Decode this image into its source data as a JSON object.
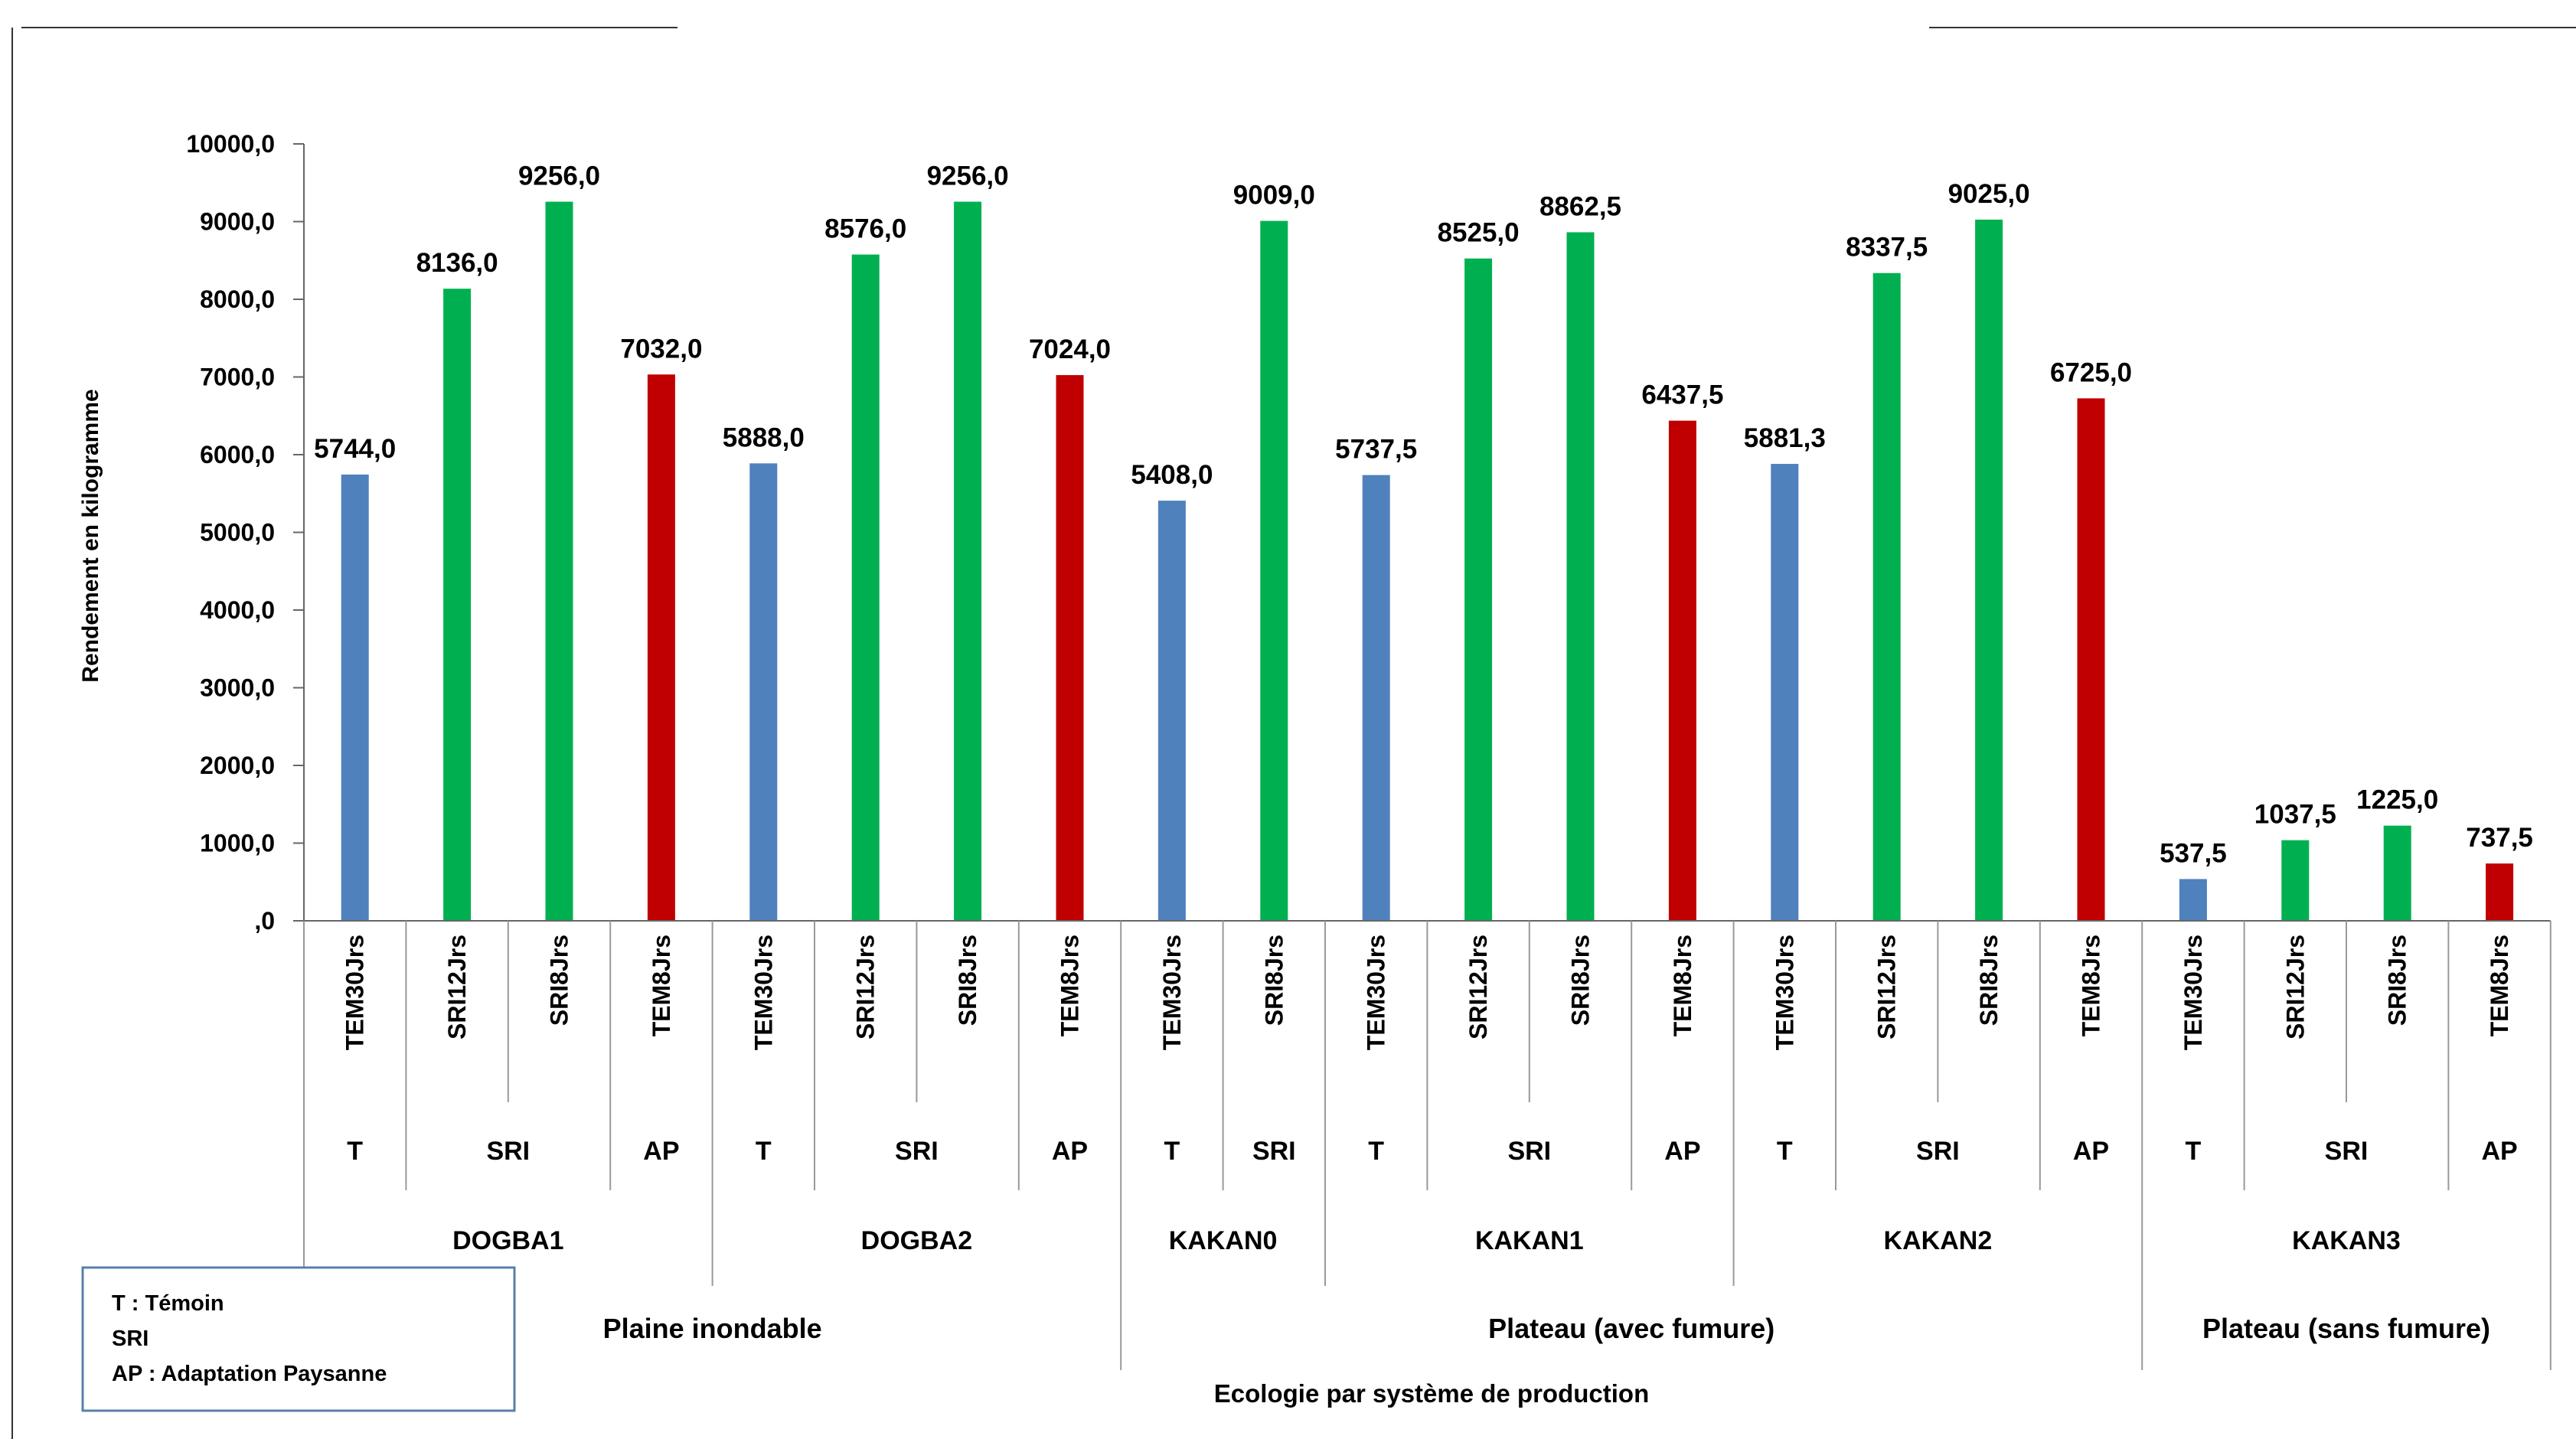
{
  "chart_data": {
    "type": "bar",
    "ylabel": "Rendement en kilogramme",
    "xlabel": "Ecologie par système de production",
    "ylim": [
      0,
      10000
    ],
    "yticks": [
      {
        "value": 0,
        "label": ",0"
      },
      {
        "value": 1000,
        "label": "1000,0"
      },
      {
        "value": 2000,
        "label": "2000,0"
      },
      {
        "value": 3000,
        "label": "3000,0"
      },
      {
        "value": 4000,
        "label": "4000,0"
      },
      {
        "value": 5000,
        "label": "5000,0"
      },
      {
        "value": 6000,
        "label": "6000,0"
      },
      {
        "value": 7000,
        "label": "7000,0"
      },
      {
        "value": 8000,
        "label": "8000,0"
      },
      {
        "value": 9000,
        "label": "9000,0"
      },
      {
        "value": 10000,
        "label": "10000,0"
      }
    ],
    "grid": false,
    "colors": {
      "T": "#4f81bd",
      "SRI": "#00b050",
      "AP": "#c00000"
    },
    "bars": [
      {
        "category": "TEM30Jrs",
        "group": "T",
        "site": "DOGBA1",
        "value": 5744.0,
        "label": "5744,0"
      },
      {
        "category": "SRI12Jrs",
        "group": "SRI",
        "site": "DOGBA1",
        "value": 8136.0,
        "label": "8136,0"
      },
      {
        "category": "SRI8Jrs",
        "group": "SRI",
        "site": "DOGBA1",
        "value": 9256.0,
        "label": "9256,0"
      },
      {
        "category": "TEM8Jrs",
        "group": "AP",
        "site": "DOGBA1",
        "value": 7032.0,
        "label": "7032,0"
      },
      {
        "category": "TEM30Jrs",
        "group": "T",
        "site": "DOGBA2",
        "value": 5888.0,
        "label": "5888,0"
      },
      {
        "category": "SRI12Jrs",
        "group": "SRI",
        "site": "DOGBA2",
        "value": 8576.0,
        "label": "8576,0"
      },
      {
        "category": "SRI8Jrs",
        "group": "SRI",
        "site": "DOGBA2",
        "value": 9256.0,
        "label": "9256,0"
      },
      {
        "category": "TEM8Jrs",
        "group": "AP",
        "site": "DOGBA2",
        "value": 7024.0,
        "label": "7024,0"
      },
      {
        "category": "TEM30Jrs",
        "group": "T",
        "site": "KAKAN0",
        "value": 5408.0,
        "label": "5408,0"
      },
      {
        "category": "SRI8Jrs",
        "group": "SRI",
        "site": "KAKAN0",
        "value": 9009.0,
        "label": "9009,0"
      },
      {
        "category": "TEM30Jrs",
        "group": "T",
        "site": "KAKAN1",
        "value": 5737.5,
        "label": "5737,5"
      },
      {
        "category": "SRI12Jrs",
        "group": "SRI",
        "site": "KAKAN1",
        "value": 8525.0,
        "label": "8525,0"
      },
      {
        "category": "SRI8Jrs",
        "group": "SRI",
        "site": "KAKAN1",
        "value": 8862.5,
        "label": "8862,5"
      },
      {
        "category": "TEM8Jrs",
        "group": "AP",
        "site": "KAKAN1",
        "value": 6437.5,
        "label": "6437,5"
      },
      {
        "category": "TEM30Jrs",
        "group": "T",
        "site": "KAKAN2",
        "value": 5881.3,
        "label": "5881,3"
      },
      {
        "category": "SRI12Jrs",
        "group": "SRI",
        "site": "KAKAN2",
        "value": 8337.5,
        "label": "8337,5"
      },
      {
        "category": "SRI8Jrs",
        "group": "SRI",
        "site": "KAKAN2",
        "value": 9025.0,
        "label": "9025,0"
      },
      {
        "category": "TEM8Jrs",
        "group": "AP",
        "site": "KAKAN2",
        "value": 6725.0,
        "label": "6725,0"
      },
      {
        "category": "TEM30Jrs",
        "group": "T",
        "site": "KAKAN3",
        "value": 537.5,
        "label": "537,5"
      },
      {
        "category": "SRI12Jrs",
        "group": "SRI",
        "site": "KAKAN3",
        "value": 1037.5,
        "label": "1037,5"
      },
      {
        "category": "SRI8Jrs",
        "group": "SRI",
        "site": "KAKAN3",
        "value": 1225.0,
        "label": "1225,0"
      },
      {
        "category": "TEM8Jrs",
        "group": "AP",
        "site": "KAKAN3",
        "value": 737.5,
        "label": "737,5"
      }
    ],
    "groups": [
      {
        "label": "T",
        "start": 0,
        "end": 0
      },
      {
        "label": "SRI",
        "start": 1,
        "end": 2
      },
      {
        "label": "AP",
        "start": 3,
        "end": 3
      },
      {
        "label": "T",
        "start": 4,
        "end": 4
      },
      {
        "label": "SRI",
        "start": 5,
        "end": 6
      },
      {
        "label": "AP",
        "start": 7,
        "end": 7
      },
      {
        "label": "T",
        "start": 8,
        "end": 8
      },
      {
        "label": "SRI",
        "start": 9,
        "end": 9
      },
      {
        "label": "T",
        "start": 10,
        "end": 10
      },
      {
        "label": "SRI",
        "start": 11,
        "end": 12
      },
      {
        "label": "AP",
        "start": 13,
        "end": 13
      },
      {
        "label": "T",
        "start": 14,
        "end": 14
      },
      {
        "label": "SRI",
        "start": 15,
        "end": 16
      },
      {
        "label": "AP",
        "start": 17,
        "end": 17
      },
      {
        "label": "T",
        "start": 18,
        "end": 18
      },
      {
        "label": "SRI",
        "start": 19,
        "end": 20
      },
      {
        "label": "AP",
        "start": 21,
        "end": 21
      }
    ],
    "sites": [
      {
        "label": "DOGBA1",
        "start": 0,
        "end": 3
      },
      {
        "label": "DOGBA2",
        "start": 4,
        "end": 7
      },
      {
        "label": "KAKAN0",
        "start": 8,
        "end": 9
      },
      {
        "label": "KAKAN1",
        "start": 10,
        "end": 13
      },
      {
        "label": "KAKAN2",
        "start": 14,
        "end": 17
      },
      {
        "label": "KAKAN3",
        "start": 18,
        "end": 21
      }
    ],
    "ecologies": [
      {
        "label": "Plaine inondable",
        "start": 0,
        "end": 7
      },
      {
        "label": "Plateau (avec fumure)",
        "start": 8,
        "end": 17
      },
      {
        "label": "Plateau (sans fumure)",
        "start": 18,
        "end": 21
      }
    ]
  },
  "legend": {
    "lines": [
      "T :  Témoin",
      "SRI",
      "AP :  Adaptation Paysanne"
    ]
  }
}
